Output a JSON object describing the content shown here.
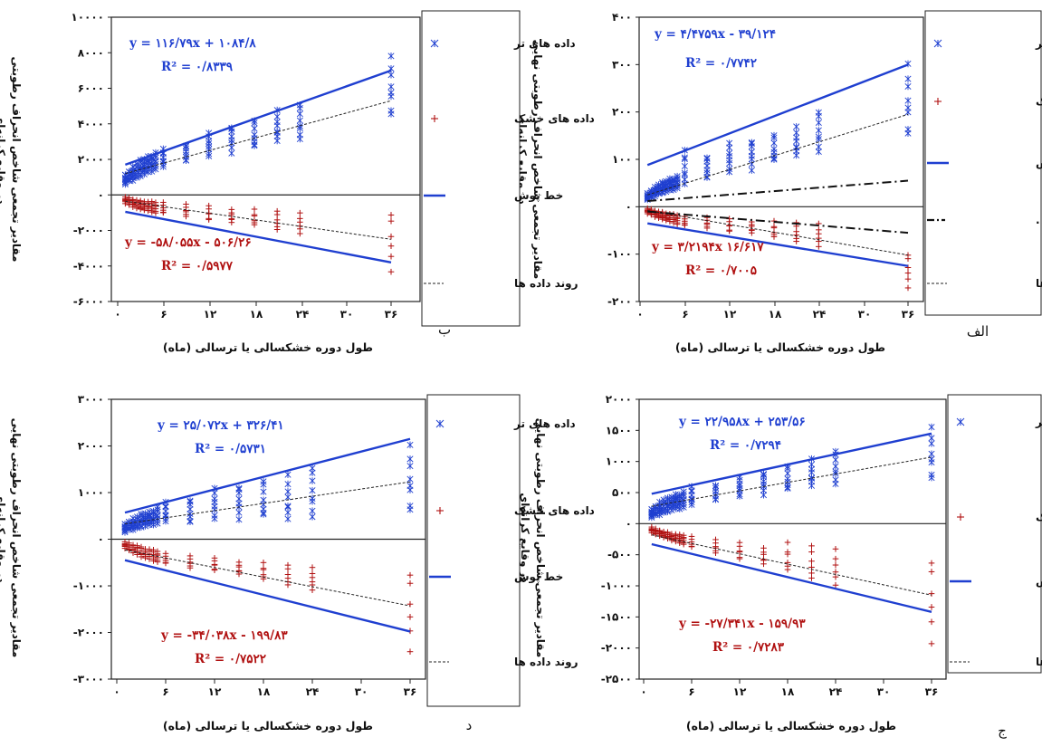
{
  "chart_data": [
    {
      "id": "alef",
      "type": "scatter",
      "panel_label": "الف",
      "xlabel": "طول دوره خشکسالی یا ترسالی (ماه)",
      "ylabel": [
        "مقادیر تجمعی شاخص انحراف رطوبتی نهایی",
        "در وقایع کرانه‌ای"
      ],
      "x_ticks": [
        "۰",
        "۶",
        "۱۲",
        "۱۸",
        "۲۴",
        "۳۰",
        "۳۶"
      ],
      "xlim": [
        0,
        40
      ],
      "y_ticks": [
        {
          "v": 400,
          "t": "۴۰۰"
        },
        {
          "v": 300,
          "t": "۳۰۰"
        },
        {
          "v": 200,
          "t": "۲۰۰"
        },
        {
          "v": 100,
          "t": "۱۰۰"
        },
        {
          "v": 0,
          "t": "۰"
        },
        {
          "v": -100,
          "t": "-۱۰۰"
        },
        {
          "v": -200,
          "t": "-۲۰۰"
        }
      ],
      "ylim": [
        -200,
        400
      ],
      "durations": [
        1,
        1.5,
        2,
        2.5,
        3,
        3.5,
        4,
        4.5,
        5,
        6,
        9,
        12,
        15,
        18,
        21,
        24,
        36
      ],
      "wet": {
        "min": [
          15,
          18,
          22,
          26,
          28,
          30,
          33,
          35,
          38,
          42,
          55,
          65,
          75,
          90,
          100,
          110,
          130
        ],
        "max": [
          30,
          36,
          42,
          48,
          52,
          56,
          60,
          62,
          65,
          120,
          110,
          135,
          145,
          155,
          170,
          205,
          310
        ],
        "n": 8
      },
      "dry": {
        "min": [
          -15,
          -18,
          -22,
          -25,
          -28,
          -30,
          -33,
          -35,
          -38,
          -42,
          -48,
          -55,
          -60,
          -68,
          -75,
          -85,
          -175
        ],
        "max": [
          -3,
          -5,
          -7,
          -9,
          -10,
          -12,
          -14,
          -15,
          -17,
          -20,
          -22,
          -25,
          -28,
          -30,
          -33,
          -35,
          -95
        ],
        "n": 6
      },
      "envelope_wet": [
        [
          1,
          88
        ],
        [
          36,
          300
        ]
      ],
      "envelope_dry": [
        [
          1,
          -35
        ],
        [
          36,
          -125
        ]
      ],
      "trend_wet": [
        [
          1,
          25
        ],
        [
          36,
          195
        ]
      ],
      "trend_dry": [
        [
          1,
          -8
        ],
        [
          36,
          -102
        ]
      ],
      "palmer": [
        [
          1,
          12
        ],
        [
          36,
          55
        ],
        [
          1,
          -10
        ],
        [
          36,
          -55
        ]
      ],
      "eq_wet": {
        "text": "y = ۴/۴۷۵۹x - ۳۹/۱۲۴",
        "r2": "R² = ۰/۷۷۴۲"
      },
      "eq_dry": {
        "text": "y = ۳/۲۱۹۴x   ۱۶/۶۱۷",
        "r2": "R² = ۰/۷۰۰۵"
      },
      "legend": [
        {
          "key": "wet",
          "label": "داده های تر"
        },
        {
          "key": "dry",
          "label": "داده های خشک"
        },
        {
          "key": "env",
          "label": "خط پوش"
        },
        {
          "key": "palmer",
          "label": "خط پوش پالمر ."
        },
        {
          "key": "trend",
          "label": "روند داده ها"
        }
      ]
    },
    {
      "id": "be",
      "type": "scatter",
      "panel_label": "ب",
      "xlabel": "طول دوره خشکسالی یا ترسالی (ماه)",
      "ylabel": [
        "مقادیر تجمعی شاخص انحراف رطوبتی",
        "در وقایع کرانه‌ای"
      ],
      "x_ticks": [
        "۰",
        "۶",
        "۱۲",
        "۱۸",
        "۲۴",
        "۳۰",
        "۳۶"
      ],
      "xlim": [
        0,
        40
      ],
      "y_ticks": [
        {
          "v": 10000,
          "t": "۱۰۰۰۰"
        },
        {
          "v": 8000,
          "t": "۸۰۰۰"
        },
        {
          "v": 6000,
          "t": "۶۰۰۰"
        },
        {
          "v": 4000,
          "t": "۴۰۰۰"
        },
        {
          "v": 2000,
          "t": "۲۰۰۰"
        },
        {
          "v": 0,
          "t": "۰"
        },
        {
          "v": -2000,
          "t": "-۲۰۰۰"
        },
        {
          "v": -4000,
          "t": "-۴۰۰۰"
        },
        {
          "v": -6000,
          "t": "-۶۰۰۰"
        }
      ],
      "ylim": [
        -6000,
        10000
      ],
      "durations": [
        1,
        1.5,
        2,
        2.5,
        3,
        3.5,
        4,
        4.5,
        5,
        6,
        9,
        12,
        15,
        18,
        21,
        24,
        36
      ],
      "wet": {
        "min": [
          600,
          700,
          800,
          900,
          1000,
          1100,
          1200,
          1300,
          1400,
          1500,
          1800,
          2000,
          2300,
          2500,
          2800,
          3000,
          4000
        ],
        "max": [
          1200,
          1400,
          1600,
          1800,
          2000,
          2100,
          2200,
          2300,
          2400,
          2600,
          2900,
          3500,
          4000,
          4300,
          4800,
          5200,
          8000
        ],
        "n": 8
      },
      "dry": {
        "min": [
          -500,
          -600,
          -700,
          -800,
          -850,
          -900,
          -950,
          -1000,
          -1050,
          -1100,
          -1300,
          -1500,
          -1700,
          -1800,
          -2000,
          -2200,
          -4500
        ],
        "max": [
          -100,
          -150,
          -200,
          -250,
          -300,
          -300,
          -350,
          -350,
          -400,
          -400,
          -500,
          -600,
          -700,
          -800,
          -900,
          -1000,
          -800
        ],
        "n": 6
      },
      "envelope_wet": [
        [
          1,
          1700
        ],
        [
          36,
          7000
        ]
      ],
      "envelope_dry": [
        [
          1,
          -950
        ],
        [
          36,
          -3800
        ]
      ],
      "trend_wet": [
        [
          1,
          1200
        ],
        [
          36,
          5300
        ]
      ],
      "trend_dry": [
        [
          1,
          -350
        ],
        [
          36,
          -2500
        ]
      ],
      "eq_wet": {
        "text": "y = ۱۱۶/۷۹x + ۱۰۸۴/۸",
        "r2": "R² = ۰/۸۳۳۹"
      },
      "eq_dry": {
        "text": "y = -۵۸/۰۵۵x - ۵۰۶/۲۶",
        "r2": "R² = ۰/۵۹۷۷"
      },
      "legend": [
        {
          "key": "wet",
          "label": "داده های تر"
        },
        {
          "key": "dry",
          "label": "داده های خشک"
        },
        {
          "key": "env",
          "label": "خط پوش"
        },
        {
          "key": "trend",
          "label": "روند داده ها"
        }
      ]
    },
    {
      "id": "jim",
      "type": "scatter",
      "panel_label": "ج",
      "xlabel": "طول دوره خشکسالی یا ترسالی (ماه)",
      "ylabel": [
        "مقادیر تجمعی شاخص انحراف رطوبتی نهایی",
        "در وقایع کرانه‌ای"
      ],
      "x_ticks": [
        "۰",
        "۶",
        "۱۲",
        "۱۸",
        "۲۴",
        "۳۰",
        "۳۶"
      ],
      "xlim": [
        0,
        40
      ],
      "y_ticks": [
        {
          "v": 2000,
          "t": "۲۰۰۰"
        },
        {
          "v": 1500,
          "t": "۱۵۰۰"
        },
        {
          "v": 1000,
          "t": "۱۰۰۰"
        },
        {
          "v": 500,
          "t": "۵۰۰"
        },
        {
          "v": 0,
          "t": "۰"
        },
        {
          "v": -500,
          "t": "-۵۰۰"
        },
        {
          "v": -1000,
          "t": "-۱۰۰۰"
        },
        {
          "v": -1500,
          "t": "-۱۵۰۰"
        },
        {
          "v": -2000,
          "t": "-۲۰۰۰"
        },
        {
          "v": -2500,
          "t": "-۲۵۰۰"
        }
      ],
      "ylim": [
        -2500,
        2000
      ],
      "durations": [
        1,
        1.5,
        2,
        2.5,
        3,
        3.5,
        4,
        4.5,
        5,
        6,
        9,
        12,
        15,
        18,
        21,
        24,
        36
      ],
      "wet": {
        "min": [
          100,
          120,
          140,
          160,
          180,
          200,
          220,
          230,
          250,
          280,
          350,
          400,
          450,
          500,
          550,
          600,
          600
        ],
        "max": [
          250,
          300,
          350,
          400,
          420,
          450,
          480,
          500,
          520,
          600,
          650,
          750,
          850,
          950,
          1050,
          1200,
          1600
        ],
        "n": 8
      },
      "dry": {
        "min": [
          -150,
          -180,
          -200,
          -230,
          -250,
          -280,
          -300,
          -320,
          -340,
          -400,
          -500,
          -600,
          -700,
          -800,
          -900,
          -1000,
          -2000
        ],
        "max": [
          -50,
          -80,
          -100,
          -120,
          -130,
          -150,
          -160,
          -170,
          -180,
          -200,
          -250,
          -300,
          -350,
          -300,
          -350,
          -400,
          -500
        ],
        "n": 6
      },
      "envelope_wet": [
        [
          1,
          480
        ],
        [
          36,
          1450
        ]
      ],
      "envelope_dry": [
        [
          1,
          -330
        ],
        [
          36,
          -1420
        ]
      ],
      "trend_wet": [
        [
          1,
          280
        ],
        [
          36,
          1070
        ]
      ],
      "trend_dry": [
        [
          1,
          -180
        ],
        [
          36,
          -1150
        ]
      ],
      "eq_wet": {
        "text": "y = ۲۲/۹۵۸x + ۲۵۳/۵۶",
        "r2": "R² = ۰/۷۲۹۴"
      },
      "eq_dry": {
        "text": "y = -۲۷/۳۴۱x - ۱۵۹/۹۳",
        "r2": "R² = ۰/۷۲۸۳"
      },
      "legend": [
        {
          "key": "wet",
          "label": "داده های تر"
        },
        {
          "key": "dry",
          "label": "داده های خشک"
        },
        {
          "key": "env",
          "label": "خط پوش"
        },
        {
          "key": "trend",
          "label": "روند داده ها"
        }
      ]
    },
    {
      "id": "dal",
      "type": "scatter",
      "panel_label": "د",
      "xlabel": "طول دوره خشکسالی یا ترسالی (ماه)",
      "ylabel": [
        "مقادیر تجمعی شاخص انحراف رطوبتی نهایی",
        "در وقایع کرانه‌ای"
      ],
      "x_ticks": [
        "۰",
        "۶",
        "۱۲",
        "۱۸",
        "۲۴",
        "۳۰",
        "۳۶"
      ],
      "xlim": [
        0,
        40
      ],
      "y_ticks": [
        {
          "v": 3000,
          "t": "۳۰۰۰"
        },
        {
          "v": 2000,
          "t": "۲۰۰۰"
        },
        {
          "v": 1000,
          "t": "۱۰۰۰"
        },
        {
          "v": 0,
          "t": "۰"
        },
        {
          "v": -1000,
          "t": "-۱۰۰۰"
        },
        {
          "v": -2000,
          "t": "-۲۰۰۰"
        },
        {
          "v": -3000,
          "t": "-۳۰۰۰"
        }
      ],
      "ylim": [
        -3000,
        3000
      ],
      "durations": [
        1,
        1.5,
        2,
        2.5,
        3,
        3.5,
        4,
        4.5,
        5,
        6,
        9,
        12,
        15,
        18,
        21,
        24,
        36
      ],
      "wet": {
        "min": [
          150,
          180,
          200,
          220,
          240,
          260,
          280,
          300,
          320,
          350,
          300,
          350,
          400,
          400,
          300,
          400,
          400
        ],
        "max": [
          350,
          400,
          450,
          500,
          550,
          580,
          600,
          650,
          700,
          800,
          900,
          1100,
          1200,
          1300,
          1400,
          1600,
          2100
        ],
        "n": 8
      },
      "dry": {
        "min": [
          -200,
          -250,
          -300,
          -350,
          -400,
          -420,
          -450,
          -480,
          -500,
          -550,
          -650,
          -700,
          -800,
          -900,
          -1000,
          -1100,
          -2500
        ],
        "max": [
          -50,
          -80,
          -100,
          -120,
          -150,
          -180,
          -200,
          -220,
          -250,
          -300,
          -350,
          -400,
          -450,
          -500,
          -550,
          -600,
          -600
        ],
        "n": 6
      },
      "envelope_wet": [
        [
          1,
          570
        ],
        [
          36,
          2150
        ]
      ],
      "envelope_dry": [
        [
          1,
          -450
        ],
        [
          36,
          -1980
        ]
      ],
      "trend_wet": [
        [
          1,
          330
        ],
        [
          36,
          1230
        ]
      ],
      "trend_dry": [
        [
          1,
          -230
        ],
        [
          36,
          -1430
        ]
      ],
      "eq_wet": {
        "text": "y = ۲۵/۰۷۲x + ۳۲۶/۴۱",
        "r2": "R² = ۰/۵۷۳۱"
      },
      "eq_dry": {
        "text": "y = -۳۴/۰۳۸x - ۱۹۹/۸۳",
        "r2": "R² = ۰/۷۵۲۲"
      },
      "legend": [
        {
          "key": "wet",
          "label": "داده های تر"
        },
        {
          "key": "dry",
          "label": "داده های خشک"
        },
        {
          "key": "env",
          "label": "خط پوش"
        },
        {
          "key": "trend",
          "label": "روند داده ها"
        }
      ]
    }
  ]
}
